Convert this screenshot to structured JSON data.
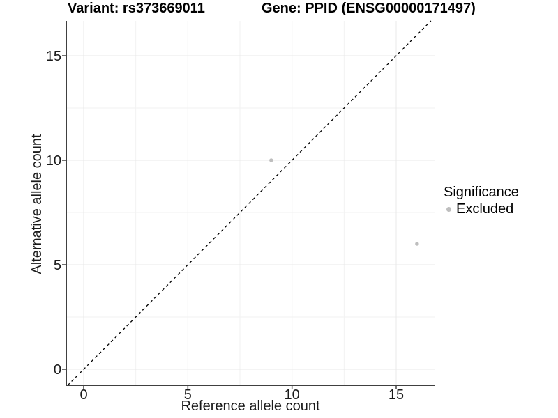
{
  "chart_data": {
    "type": "scatter",
    "title_left": "Variant: rs373669011",
    "title_right": "Gene: PPID (ENSG00000171497)",
    "xlabel": "Reference allele count",
    "ylabel": "Alternative allele count",
    "xlim": [
      -0.84,
      16.84
    ],
    "ylim": [
      -0.77,
      16.67
    ],
    "x_ticks": [
      0,
      5,
      10,
      15
    ],
    "y_ticks": [
      0,
      5,
      10,
      15
    ],
    "x_minor_ticks": [
      2.5,
      7.5,
      12.5
    ],
    "y_minor_ticks": [
      2.5,
      7.5,
      12.5
    ],
    "grid": "on",
    "legend": {
      "title": "Significance",
      "position": "right",
      "items": [
        {
          "label": "Excluded",
          "color": "#bebebe"
        }
      ]
    },
    "series": [
      {
        "name": "Excluded",
        "color": "#bebebe",
        "points": [
          {
            "x": 9,
            "y": 10
          },
          {
            "x": 16,
            "y": 6
          }
        ]
      }
    ],
    "reference_line": {
      "type": "identity",
      "slope": 1,
      "intercept": 0,
      "style": "dashed",
      "color": "#000000"
    }
  },
  "colors": {
    "background": "#ffffff",
    "grid_major": "#e8e8e8",
    "grid_minor": "#f2f2f2",
    "axis_line": "#404040",
    "tick_text": "#1a1a1a",
    "point": "#bebebe"
  }
}
